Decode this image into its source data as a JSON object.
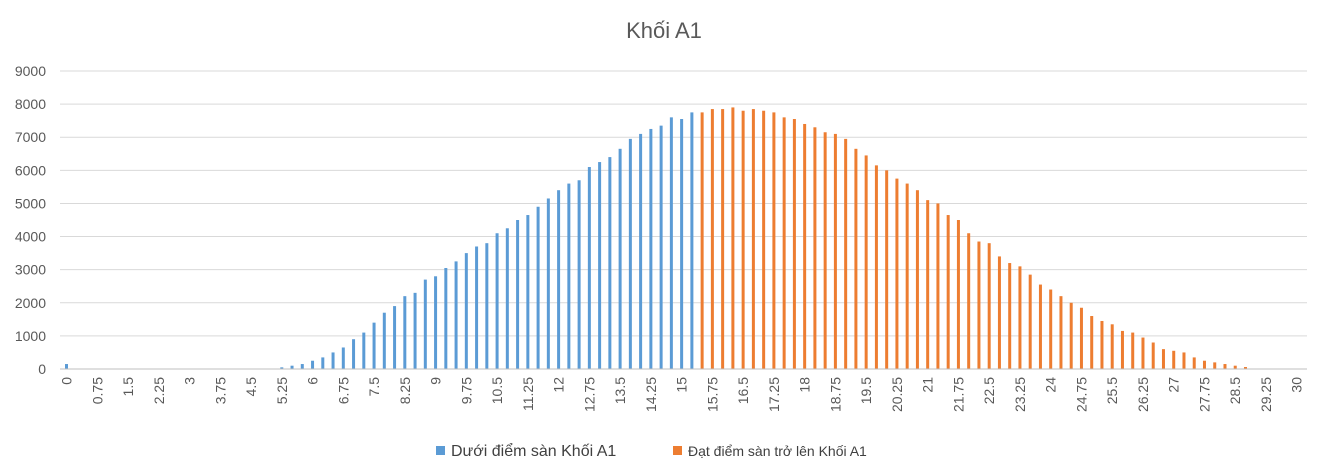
{
  "chart_data": {
    "type": "bar",
    "title": "Khối A1",
    "xlabel": "",
    "ylabel": "",
    "ylim": [
      0,
      9000
    ],
    "yticks": [
      0,
      1000,
      2000,
      3000,
      4000,
      5000,
      6000,
      7000,
      8000,
      9000
    ],
    "xticks": [
      "0",
      "0.75",
      "1.5",
      "2.25",
      "3",
      "3.75",
      "4.5",
      "5.25",
      "6",
      "6.75",
      "7.5",
      "8.25",
      "9",
      "9.75",
      "10.5",
      "11.25",
      "12",
      "12.75",
      "13.5",
      "14.25",
      "15",
      "15.75",
      "16.5",
      "17.25",
      "18",
      "18.75",
      "19.5",
      "20.25",
      "21",
      "21.75",
      "22.5",
      "23.25",
      "24",
      "24.75",
      "25.5",
      "26.25",
      "27",
      "27.75",
      "28.5",
      "29.25",
      "30"
    ],
    "grid": true,
    "legend": "bottom",
    "series": [
      {
        "name": "Dưới điểm sàn Khối A1",
        "color": "#5b9bd5",
        "points": [
          [
            0,
            150
          ],
          [
            5.25,
            50
          ],
          [
            5.5,
            100
          ],
          [
            5.75,
            150
          ],
          [
            6,
            250
          ],
          [
            6.25,
            350
          ],
          [
            6.5,
            500
          ],
          [
            6.75,
            650
          ],
          [
            7,
            900
          ],
          [
            7.25,
            1100
          ],
          [
            7.5,
            1400
          ],
          [
            7.75,
            1700
          ],
          [
            8,
            1900
          ],
          [
            8.25,
            2200
          ],
          [
            8.5,
            2300
          ],
          [
            8.75,
            2700
          ],
          [
            9,
            2800
          ],
          [
            9.25,
            3050
          ],
          [
            9.5,
            3250
          ],
          [
            9.75,
            3500
          ],
          [
            10,
            3700
          ],
          [
            10.25,
            3800
          ],
          [
            10.5,
            4100
          ],
          [
            10.75,
            4250
          ],
          [
            11,
            4500
          ],
          [
            11.25,
            4650
          ],
          [
            11.5,
            4900
          ],
          [
            11.75,
            5150
          ],
          [
            12,
            5400
          ],
          [
            12.25,
            5600
          ],
          [
            12.5,
            5700
          ],
          [
            12.75,
            6100
          ],
          [
            13,
            6250
          ],
          [
            13.25,
            6400
          ],
          [
            13.5,
            6650
          ],
          [
            13.75,
            6950
          ],
          [
            14,
            7100
          ],
          [
            14.25,
            7250
          ],
          [
            14.5,
            7350
          ],
          [
            14.75,
            7600
          ],
          [
            15,
            7550
          ],
          [
            15.25,
            7750
          ]
        ]
      },
      {
        "name": "Đạt điểm sàn trở lên Khối A1",
        "color": "#ed7d31",
        "points": [
          [
            15.5,
            7750
          ],
          [
            15.75,
            7850
          ],
          [
            16,
            7850
          ],
          [
            16.25,
            7900
          ],
          [
            16.5,
            7800
          ],
          [
            16.75,
            7850
          ],
          [
            17,
            7800
          ],
          [
            17.25,
            7750
          ],
          [
            17.5,
            7600
          ],
          [
            17.75,
            7550
          ],
          [
            18,
            7400
          ],
          [
            18.25,
            7300
          ],
          [
            18.5,
            7150
          ],
          [
            18.75,
            7100
          ],
          [
            19,
            6950
          ],
          [
            19.25,
            6650
          ],
          [
            19.5,
            6450
          ],
          [
            19.75,
            6150
          ],
          [
            20,
            6000
          ],
          [
            20.25,
            5750
          ],
          [
            20.5,
            5600
          ],
          [
            20.75,
            5400
          ],
          [
            21,
            5100
          ],
          [
            21.25,
            5000
          ],
          [
            21.5,
            4650
          ],
          [
            21.75,
            4500
          ],
          [
            22,
            4100
          ],
          [
            22.25,
            3850
          ],
          [
            22.5,
            3800
          ],
          [
            22.75,
            3400
          ],
          [
            23,
            3200
          ],
          [
            23.25,
            3100
          ],
          [
            23.5,
            2850
          ],
          [
            23.75,
            2550
          ],
          [
            24,
            2400
          ],
          [
            24.25,
            2200
          ],
          [
            24.5,
            2000
          ],
          [
            24.75,
            1850
          ],
          [
            25,
            1600
          ],
          [
            25.25,
            1450
          ],
          [
            25.5,
            1350
          ],
          [
            25.75,
            1150
          ],
          [
            26,
            1100
          ],
          [
            26.25,
            950
          ],
          [
            26.5,
            800
          ],
          [
            26.75,
            600
          ],
          [
            27,
            550
          ],
          [
            27.25,
            500
          ],
          [
            27.5,
            350
          ],
          [
            27.75,
            250
          ],
          [
            28,
            200
          ],
          [
            28.25,
            150
          ],
          [
            28.5,
            100
          ],
          [
            28.75,
            60
          ]
        ]
      }
    ]
  }
}
